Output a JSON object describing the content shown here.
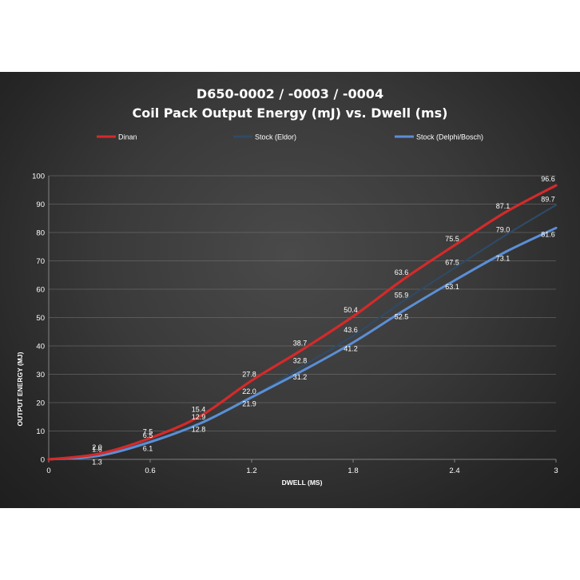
{
  "chart_data": {
    "type": "line",
    "title": "D650-0002  /  -0003  /  -0004",
    "subtitle": "Coil  Pack  Output  Energy  (mJ)  vs.  Dwell  (ms)",
    "xlabel": "DWELL (MS)",
    "ylabel": "OUTPUT ENERGY (MJ)",
    "xlim": [
      0,
      3
    ],
    "ylim": [
      0,
      100
    ],
    "x_ticks": [
      "0",
      "0.6",
      "1.2",
      "1.8",
      "2.4",
      "3"
    ],
    "y_ticks": [
      "0",
      "10",
      "20",
      "30",
      "40",
      "50",
      "60",
      "70",
      "80",
      "90",
      "100"
    ],
    "grid": true,
    "legend_position": "top",
    "x": [
      0,
      0.3,
      0.6,
      0.9,
      1.2,
      1.5,
      1.8,
      2.1,
      2.4,
      2.7,
      3.0
    ],
    "series": [
      {
        "name": "Dinan",
        "color": "#d42a2a",
        "values": [
          0,
          2.0,
          7.5,
          15.4,
          27.8,
          38.7,
          50.4,
          63.6,
          75.5,
          87.1,
          96.6
        ],
        "labels": [
          "",
          "2.0",
          "7.5",
          "15.4",
          "27.8",
          "38.7",
          "50.4",
          "63.6",
          "75.5",
          "87.1",
          "96.6"
        ]
      },
      {
        "name": "Stock (Eldor)",
        "color": "#2f4a66",
        "values": [
          0,
          1.6,
          6.5,
          12.9,
          22.0,
          32.8,
          43.6,
          55.9,
          67.5,
          79.0,
          89.7
        ],
        "labels": [
          "",
          "1.6",
          "6.5",
          "12.9",
          "22.0",
          "32.8",
          "43.6",
          "55.9",
          "67.5",
          "79.0",
          "89.7"
        ]
      },
      {
        "name": "Stock (Delphi/Bosch)",
        "color": "#5b8fd6",
        "values": [
          0,
          1.3,
          6.1,
          12.8,
          21.9,
          31.2,
          41.2,
          52.5,
          63.1,
          73.1,
          81.6
        ],
        "labels": [
          "",
          "1.3",
          "6.1",
          "12.8",
          "21.9",
          "31.2",
          "41.2",
          "52.5",
          "63.1",
          "73.1",
          "81.6"
        ]
      }
    ]
  }
}
